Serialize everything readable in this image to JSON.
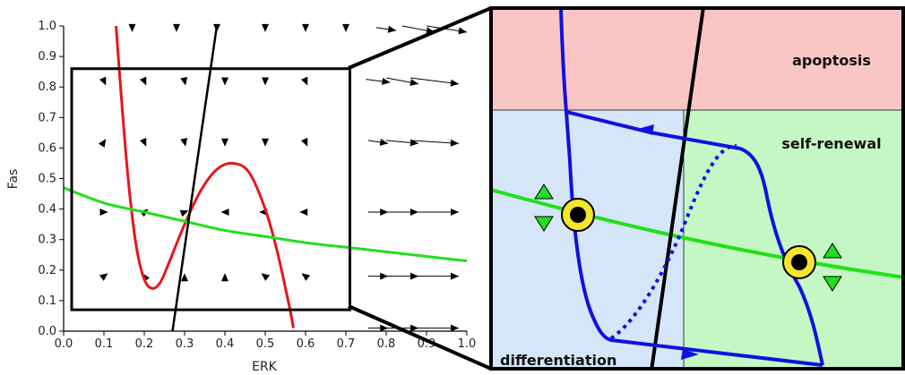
{
  "chart_data": [
    {
      "type": "line",
      "title": "",
      "xlabel": "ERK",
      "ylabel": "Fas",
      "xlim": [
        0.0,
        1.0
      ],
      "ylim": [
        0.0,
        1.0
      ],
      "x_ticks": [
        "0.0",
        "0.1",
        "0.2",
        "0.3",
        "0.4",
        "0.5",
        "0.6",
        "0.7",
        "0.8",
        "0.9",
        "1.0"
      ],
      "y_ticks": [
        "0.0",
        "0.1",
        "0.2",
        "0.3",
        "0.4",
        "0.5",
        "0.6",
        "0.7",
        "0.8",
        "0.9",
        "1.0"
      ],
      "grid": false,
      "series": [
        {
          "color": "#e8141c",
          "points": [
            [
              0.13,
              1.0
            ],
            [
              0.14,
              0.82
            ],
            [
              0.16,
              0.5
            ],
            [
              0.18,
              0.28
            ],
            [
              0.2,
              0.17
            ],
            [
              0.22,
              0.14
            ],
            [
              0.24,
              0.16
            ],
            [
              0.26,
              0.22
            ],
            [
              0.3,
              0.35
            ],
            [
              0.34,
              0.46
            ],
            [
              0.38,
              0.53
            ],
            [
              0.42,
              0.55
            ],
            [
              0.46,
              0.52
            ],
            [
              0.5,
              0.4
            ],
            [
              0.53,
              0.26
            ],
            [
              0.56,
              0.08
            ],
            [
              0.57,
              0.01
            ]
          ]
        },
        {
          "color": "#22e01a",
          "points": [
            [
              0.0,
              0.47
            ],
            [
              0.1,
              0.42
            ],
            [
              0.2,
              0.39
            ],
            [
              0.3,
              0.36
            ],
            [
              0.4,
              0.33
            ],
            [
              0.5,
              0.31
            ],
            [
              0.6,
              0.29
            ],
            [
              0.7,
              0.275
            ],
            [
              0.8,
              0.26
            ],
            [
              0.9,
              0.245
            ],
            [
              1.0,
              0.23
            ]
          ]
        },
        {
          "color": "#000000",
          "points": [
            [
              0.27,
              0.0
            ],
            [
              0.38,
              1.0
            ]
          ]
        }
      ],
      "vector_field": {
        "color": "#000000",
        "arrows": [
          [
            0.1,
            0.82,
            0.01,
            -0.03
          ],
          [
            0.2,
            0.82,
            0.01,
            -0.03
          ],
          [
            0.3,
            0.82,
            0.005,
            -0.03
          ],
          [
            0.4,
            0.82,
            0.0,
            -0.03
          ],
          [
            0.5,
            0.82,
            0.0,
            -0.03
          ],
          [
            0.6,
            0.82,
            0.01,
            -0.03
          ],
          [
            0.1,
            0.62,
            0.01,
            0.02
          ],
          [
            0.2,
            0.62,
            0.01,
            -0.03
          ],
          [
            0.3,
            0.62,
            0.005,
            -0.03
          ],
          [
            0.4,
            0.62,
            0.0,
            -0.03
          ],
          [
            0.5,
            0.62,
            0.0,
            -0.03
          ],
          [
            0.6,
            0.62,
            0.01,
            -0.03
          ],
          [
            0.1,
            0.39,
            0.02,
            0.0
          ],
          [
            0.2,
            0.39,
            0.02,
            0.02
          ],
          [
            0.3,
            0.39,
            0.02,
            0.01
          ],
          [
            0.4,
            0.39,
            -0.02,
            0.0
          ],
          [
            0.5,
            0.39,
            -0.03,
            0.0
          ],
          [
            0.6,
            0.39,
            -0.03,
            0.0
          ],
          [
            0.1,
            0.18,
            0.02,
            0.02
          ],
          [
            0.2,
            0.18,
            -0.01,
            0.02
          ],
          [
            0.3,
            0.18,
            0.0,
            0.02
          ],
          [
            0.4,
            0.18,
            0.0,
            0.02
          ],
          [
            0.5,
            0.18,
            -0.02,
            0.02
          ],
          [
            0.6,
            0.18,
            -0.02,
            0.02
          ],
          [
            0.78,
            0.82,
            0.06,
            -0.01
          ],
          [
            0.84,
            0.82,
            0.08,
            -0.02
          ],
          [
            0.92,
            0.82,
            0.12,
            -0.02
          ],
          [
            0.78,
            0.62,
            0.05,
            -0.01
          ],
          [
            0.84,
            0.62,
            0.08,
            -0.01
          ],
          [
            0.92,
            0.62,
            0.12,
            -0.01
          ],
          [
            0.78,
            0.39,
            0.05,
            0.0
          ],
          [
            0.84,
            0.39,
            0.08,
            0.0
          ],
          [
            0.92,
            0.39,
            0.12,
            0.0
          ],
          [
            0.78,
            0.18,
            0.05,
            0.0
          ],
          [
            0.84,
            0.18,
            0.08,
            0.0
          ],
          [
            0.92,
            0.18,
            0.12,
            0.0
          ],
          [
            0.78,
            0.01,
            0.05,
            0.0
          ],
          [
            0.84,
            0.01,
            0.08,
            0.0
          ],
          [
            0.92,
            0.01,
            0.12,
            0.0
          ],
          [
            0.17,
            0.99,
            0.0,
            -0.02
          ],
          [
            0.28,
            0.99,
            0.0,
            -0.02
          ],
          [
            0.38,
            0.99,
            0.0,
            -0.02
          ],
          [
            0.5,
            0.99,
            0.0,
            -0.02
          ],
          [
            0.6,
            0.99,
            0.0,
            -0.02
          ],
          [
            0.7,
            0.99,
            0.0,
            -0.02
          ],
          [
            0.8,
            0.99,
            0.05,
            -0.01
          ],
          [
            0.88,
            0.99,
            0.08,
            -0.02
          ],
          [
            0.95,
            0.99,
            0.1,
            -0.02
          ]
        ]
      },
      "zoom_box": {
        "x": [
          0.02,
          0.71
        ],
        "y": [
          0.07,
          0.86
        ]
      }
    },
    {
      "type": "diagram",
      "regions": [
        {
          "label": "apoptosis",
          "color": "#f9c5c5"
        },
        {
          "label": "self-renewal",
          "color": "#c5f7c5"
        },
        {
          "label": "differentiation",
          "color": "#d4e6f8"
        }
      ],
      "curves": [
        {
          "name": "",
          "color": "#1111dd",
          "style": "solid"
        },
        {
          "name": "",
          "color": "#1111dd",
          "style": "dotted"
        },
        {
          "name": "",
          "color": "#22e01a",
          "style": "solid"
        },
        {
          "name": "",
          "color": "#000000",
          "style": "solid"
        }
      ],
      "markers": [
        {
          "label": "",
          "fill": "#f6e52a",
          "center": "#000000"
        },
        {
          "label": "",
          "fill": "#f6e52a",
          "center": "#000000"
        }
      ],
      "arrowheads_color": "#22dd22"
    }
  ]
}
